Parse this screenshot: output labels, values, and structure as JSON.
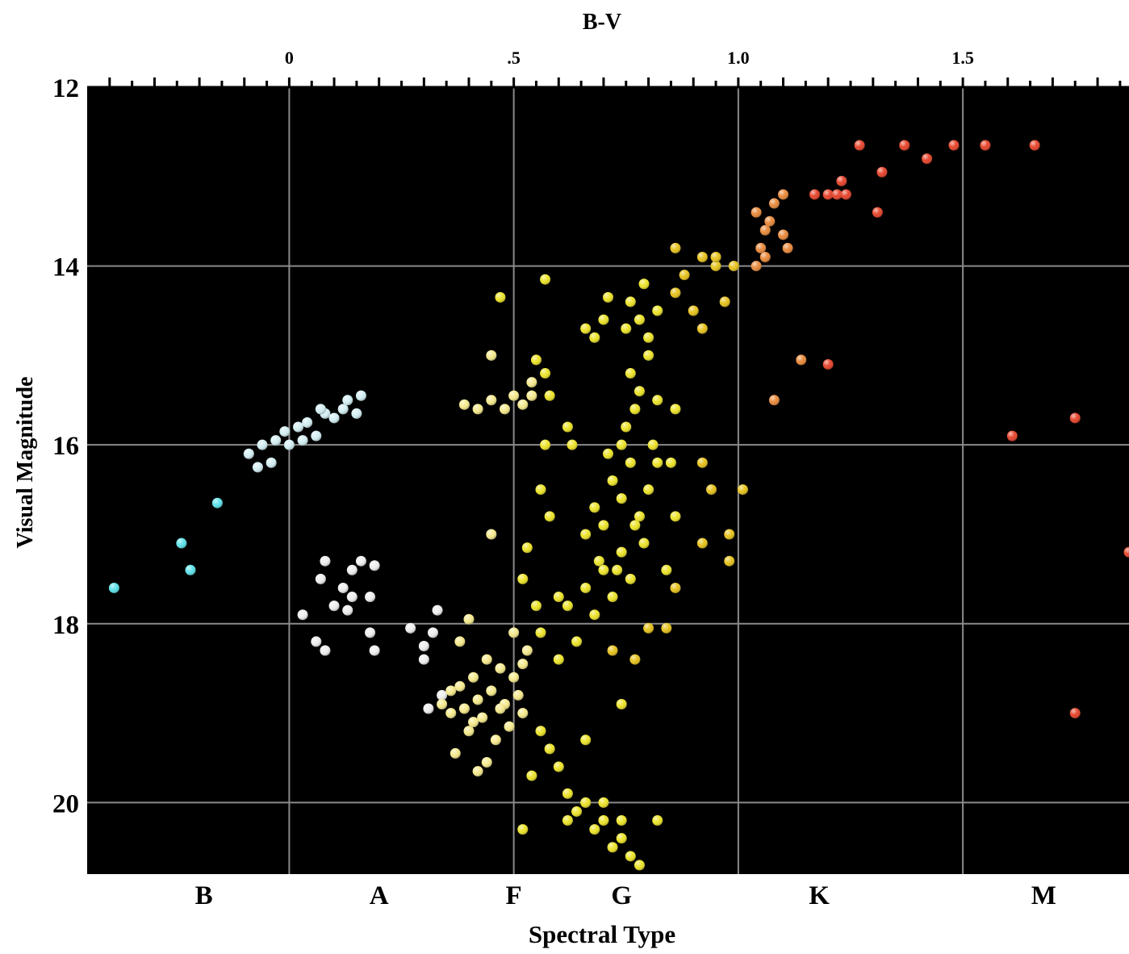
{
  "chart_data": {
    "type": "scatter",
    "title": "",
    "top_axis": {
      "label": "B-V",
      "range": [
        -0.45,
        1.87
      ],
      "ticks": [
        {
          "v": 0,
          "label": "0"
        },
        {
          "v": 0.5,
          "label": ".5"
        },
        {
          "v": 1.0,
          "label": "1.0"
        },
        {
          "v": 1.5,
          "label": "1.5"
        }
      ]
    },
    "y_axis": {
      "label": "Visual Magnitude",
      "range": [
        12,
        20.8
      ],
      "inverted": true,
      "ticks": [
        {
          "v": 12,
          "label": "12"
        },
        {
          "v": 14,
          "label": "14"
        },
        {
          "v": 16,
          "label": "16"
        },
        {
          "v": 18,
          "label": "18"
        },
        {
          "v": 20,
          "label": "20"
        }
      ]
    },
    "bottom_axis": {
      "label": "Spectral Type",
      "classes": [
        {
          "label": "B",
          "bv": -0.19
        },
        {
          "label": "A",
          "bv": 0.2
        },
        {
          "label": "F",
          "bv": 0.5
        },
        {
          "label": "G",
          "bv": 0.74
        },
        {
          "label": "K",
          "bv": 1.18
        },
        {
          "label": "M",
          "bv": 1.68
        }
      ]
    },
    "grid": true,
    "background": "#000000",
    "grid_color": "#8a8a8a",
    "series": [
      {
        "color": "#5ee3ea",
        "points": [
          [
            -0.39,
            17.6
          ],
          [
            -0.24,
            17.1
          ],
          [
            -0.22,
            17.4
          ],
          [
            -0.16,
            16.65
          ]
        ]
      },
      {
        "color": "#d2eef2",
        "points": [
          [
            -0.09,
            16.1
          ],
          [
            -0.06,
            16.0
          ],
          [
            -0.04,
            16.2
          ],
          [
            -0.03,
            15.95
          ],
          [
            -0.01,
            15.85
          ],
          [
            0.0,
            16.0
          ],
          [
            0.02,
            15.8
          ],
          [
            0.04,
            15.75
          ],
          [
            0.06,
            15.9
          ],
          [
            0.08,
            15.65
          ],
          [
            0.1,
            15.7
          ],
          [
            0.12,
            15.6
          ],
          [
            0.13,
            15.5
          ],
          [
            0.15,
            15.65
          ],
          [
            0.16,
            15.45
          ],
          [
            -0.07,
            16.25
          ],
          [
            0.03,
            15.95
          ],
          [
            0.07,
            15.6
          ]
        ]
      },
      {
        "color": "#eeeeee",
        "points": [
          [
            0.03,
            17.9
          ],
          [
            0.06,
            18.2
          ],
          [
            0.07,
            17.5
          ],
          [
            0.08,
            17.3
          ],
          [
            0.1,
            17.8
          ],
          [
            0.12,
            17.6
          ],
          [
            0.14,
            17.4
          ],
          [
            0.14,
            17.7
          ],
          [
            0.16,
            17.3
          ],
          [
            0.18,
            17.7
          ],
          [
            0.18,
            18.1
          ],
          [
            0.19,
            17.35
          ],
          [
            0.19,
            18.3
          ],
          [
            0.08,
            18.3
          ],
          [
            0.13,
            17.85
          ],
          [
            0.27,
            18.05
          ],
          [
            0.3,
            18.25
          ],
          [
            0.32,
            18.1
          ],
          [
            0.33,
            17.85
          ],
          [
            0.3,
            18.4
          ],
          [
            0.34,
            18.8
          ],
          [
            0.31,
            18.95
          ]
        ]
      },
      {
        "color": "#f5e98c",
        "points": [
          [
            0.34,
            18.9
          ],
          [
            0.36,
            19.0
          ],
          [
            0.38,
            18.7
          ],
          [
            0.39,
            18.95
          ],
          [
            0.4,
            19.2
          ],
          [
            0.41,
            18.6
          ],
          [
            0.42,
            18.85
          ],
          [
            0.43,
            19.05
          ],
          [
            0.44,
            18.4
          ],
          [
            0.45,
            18.75
          ],
          [
            0.46,
            19.3
          ],
          [
            0.47,
            18.5
          ],
          [
            0.48,
            18.9
          ],
          [
            0.49,
            19.15
          ],
          [
            0.5,
            18.6
          ],
          [
            0.51,
            18.8
          ],
          [
            0.52,
            19.0
          ],
          [
            0.53,
            18.3
          ],
          [
            0.37,
            19.45
          ],
          [
            0.42,
            19.65
          ],
          [
            0.38,
            18.2
          ],
          [
            0.4,
            17.95
          ],
          [
            0.5,
            18.1
          ],
          [
            0.52,
            18.45
          ],
          [
            0.36,
            18.75
          ],
          [
            0.44,
            19.55
          ],
          [
            0.41,
            19.1
          ],
          [
            0.47,
            18.95
          ],
          [
            0.39,
            15.55
          ],
          [
            0.42,
            15.6
          ],
          [
            0.45,
            15.5
          ],
          [
            0.48,
            15.6
          ],
          [
            0.5,
            15.45
          ],
          [
            0.52,
            15.55
          ],
          [
            0.54,
            15.45
          ],
          [
            0.45,
            15.0
          ],
          [
            0.45,
            17.0
          ],
          [
            0.54,
            15.3
          ]
        ]
      },
      {
        "color": "#ece32a",
        "points": [
          [
            0.56,
            18.1
          ],
          [
            0.6,
            18.4
          ],
          [
            0.62,
            17.8
          ],
          [
            0.64,
            18.2
          ],
          [
            0.66,
            17.6
          ],
          [
            0.68,
            17.9
          ],
          [
            0.7,
            17.4
          ],
          [
            0.72,
            17.7
          ],
          [
            0.74,
            17.2
          ],
          [
            0.76,
            17.5
          ],
          [
            0.66,
            17.0
          ],
          [
            0.68,
            16.7
          ],
          [
            0.7,
            16.9
          ],
          [
            0.72,
            16.4
          ],
          [
            0.74,
            16.6
          ],
          [
            0.76,
            16.2
          ],
          [
            0.74,
            16.0
          ],
          [
            0.75,
            15.8
          ],
          [
            0.77,
            15.6
          ],
          [
            0.78,
            15.4
          ],
          [
            0.76,
            15.2
          ],
          [
            0.8,
            15.0
          ],
          [
            0.78,
            16.8
          ],
          [
            0.8,
            16.5
          ],
          [
            0.81,
            16.0
          ],
          [
            0.82,
            15.5
          ],
          [
            0.79,
            17.1
          ],
          [
            0.82,
            16.2
          ],
          [
            0.77,
            16.9
          ],
          [
            0.73,
            17.4
          ],
          [
            0.69,
            17.3
          ],
          [
            0.71,
            16.1
          ],
          [
            0.78,
            14.6
          ],
          [
            0.8,
            14.8
          ],
          [
            0.75,
            14.7
          ],
          [
            0.82,
            14.5
          ],
          [
            0.79,
            14.2
          ],
          [
            0.76,
            14.4
          ],
          [
            0.7,
            14.6
          ],
          [
            0.66,
            14.7
          ],
          [
            0.68,
            14.8
          ],
          [
            0.71,
            14.35
          ],
          [
            0.57,
            14.15
          ],
          [
            0.57,
            15.2
          ],
          [
            0.55,
            15.05
          ],
          [
            0.58,
            15.45
          ],
          [
            0.57,
            16.0
          ],
          [
            0.56,
            16.5
          ],
          [
            0.58,
            16.8
          ],
          [
            0.53,
            17.15
          ],
          [
            0.6,
            17.7
          ],
          [
            0.55,
            17.8
          ],
          [
            0.47,
            14.35
          ],
          [
            0.52,
            17.5
          ],
          [
            0.63,
            16.0
          ],
          [
            0.62,
            15.8
          ],
          [
            0.56,
            19.2
          ],
          [
            0.6,
            19.6
          ],
          [
            0.62,
            19.9
          ],
          [
            0.64,
            20.1
          ],
          [
            0.66,
            20.0
          ],
          [
            0.68,
            20.3
          ],
          [
            0.7,
            20.2
          ],
          [
            0.72,
            20.5
          ],
          [
            0.74,
            20.4
          ],
          [
            0.76,
            20.6
          ],
          [
            0.78,
            20.7
          ],
          [
            0.62,
            20.2
          ],
          [
            0.58,
            19.4
          ],
          [
            0.54,
            19.7
          ],
          [
            0.7,
            20.0
          ],
          [
            0.74,
            20.2
          ],
          [
            0.66,
            19.3
          ],
          [
            0.82,
            20.2
          ],
          [
            0.52,
            20.3
          ],
          [
            0.86,
            15.6
          ],
          [
            0.85,
            16.2
          ],
          [
            0.86,
            16.8
          ],
          [
            0.84,
            17.4
          ],
          [
            0.74,
            18.9
          ]
        ]
      },
      {
        "color": "#e6c21e",
        "points": [
          [
            0.86,
            13.8
          ],
          [
            0.88,
            14.1
          ],
          [
            0.86,
            14.3
          ],
          [
            0.9,
            14.5
          ],
          [
            0.92,
            13.9
          ],
          [
            0.95,
            14.0
          ],
          [
            0.92,
            14.7
          ],
          [
            0.95,
            13.9
          ],
          [
            0.97,
            14.4
          ],
          [
            0.99,
            14.0
          ],
          [
            0.92,
            16.2
          ],
          [
            0.94,
            16.5
          ],
          [
            0.92,
            17.1
          ],
          [
            0.98,
            17.0
          ],
          [
            0.98,
            17.3
          ],
          [
            1.01,
            16.5
          ],
          [
            0.8,
            18.05
          ],
          [
            0.84,
            18.05
          ],
          [
            0.72,
            18.3
          ],
          [
            0.77,
            18.4
          ],
          [
            0.86,
            17.6
          ]
        ]
      },
      {
        "color": "#e88a3c",
        "points": [
          [
            1.04,
            13.4
          ],
          [
            1.06,
            13.6
          ],
          [
            1.05,
            13.8
          ],
          [
            1.07,
            13.5
          ],
          [
            1.06,
            13.9
          ],
          [
            1.08,
            13.3
          ],
          [
            1.1,
            13.2
          ],
          [
            1.1,
            13.65
          ],
          [
            1.11,
            13.8
          ],
          [
            1.04,
            14.0
          ],
          [
            1.08,
            15.5
          ],
          [
            1.14,
            15.05
          ]
        ]
      },
      {
        "color": "#e6452c",
        "points": [
          [
            1.17,
            13.2
          ],
          [
            1.2,
            13.2
          ],
          [
            1.22,
            13.2
          ],
          [
            1.23,
            13.05
          ],
          [
            1.24,
            13.2
          ],
          [
            1.27,
            12.65
          ],
          [
            1.32,
            12.95
          ],
          [
            1.31,
            13.4
          ],
          [
            1.37,
            12.65
          ],
          [
            1.42,
            12.8
          ],
          [
            1.48,
            12.65
          ],
          [
            1.55,
            12.65
          ],
          [
            1.66,
            12.65
          ],
          [
            1.2,
            15.1
          ],
          [
            1.61,
            15.9
          ],
          [
            1.75,
            15.7
          ],
          [
            1.87,
            17.2
          ],
          [
            1.75,
            19.0
          ]
        ]
      }
    ]
  }
}
